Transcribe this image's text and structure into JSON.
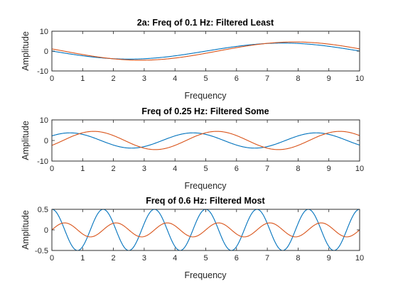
{
  "chart_data": [
    {
      "type": "line",
      "title": "2a: Freq of 0.1 Hz: Filtered Least",
      "xlabel": "Frequency",
      "ylabel": "Amplitude",
      "xlim": [
        0,
        10
      ],
      "ylim": [
        -10,
        10
      ],
      "xticks": [
        0,
        1,
        2,
        3,
        4,
        5,
        6,
        7,
        8,
        9,
        10
      ],
      "yticks": [
        -10,
        0,
        10
      ],
      "grid": false,
      "series": [
        {
          "color": "#0072BD",
          "frequency_hz": 0.1,
          "x": [
            0,
            1,
            2,
            3,
            4,
            5,
            6,
            7,
            7.6,
            8,
            9,
            10
          ],
          "y": [
            0,
            -2.3,
            -3.8,
            -3.9,
            -2.4,
            0,
            2.4,
            3.8,
            4.0,
            3.9,
            2.4,
            0
          ]
        },
        {
          "color": "#D95319",
          "frequency_hz": 0.1,
          "x": [
            0,
            1,
            2,
            2.8,
            3,
            4,
            5,
            6,
            7,
            7.8,
            8,
            9,
            10
          ],
          "y": [
            1.4,
            -0.9,
            -3.7,
            -4.7,
            -4.6,
            -3.3,
            -0.5,
            2.2,
            4.2,
            4.7,
            4.7,
            3.3,
            1.4
          ]
        }
      ]
    },
    {
      "type": "line",
      "title": "Freq of 0.25 Hz: Filtered Some",
      "xlabel": "Frequency",
      "ylabel": "Amplitude",
      "xlim": [
        0,
        10
      ],
      "ylim": [
        -10,
        10
      ],
      "xticks": [
        0,
        1,
        2,
        3,
        4,
        5,
        6,
        7,
        8,
        9,
        10
      ],
      "yticks": [
        -10,
        0,
        10
      ],
      "grid": false,
      "series": [
        {
          "color": "#0072BD",
          "frequency_hz": 0.25,
          "x": [
            0,
            0.4,
            1,
            1.5,
            2,
            2.4,
            3,
            3.5,
            4,
            4.4,
            5,
            5.5,
            6,
            6.4,
            7,
            7.5,
            8,
            8.4,
            9,
            9.5,
            10
          ],
          "y": [
            2.8,
            3.6,
            2.8,
            0.7,
            -2.2,
            -3.6,
            -2.8,
            -0.7,
            2.2,
            3.6,
            2.8,
            0.7,
            -2.2,
            -3.6,
            -2.8,
            -0.7,
            2.2,
            3.6,
            2.8,
            0.7,
            -2.2
          ]
        },
        {
          "color": "#D95319",
          "frequency_hz": 0.25,
          "x": [
            0,
            0.5,
            1,
            1.2,
            2,
            2.5,
            3,
            3.2,
            4,
            4.5,
            5,
            5.2,
            6,
            6.5,
            7,
            7.2,
            8,
            8.5,
            9,
            9.2,
            10
          ],
          "y": [
            0,
            2.4,
            4.1,
            4.4,
            2.4,
            0.1,
            -3.9,
            -4.4,
            -2.5,
            0.1,
            4.0,
            4.4,
            2.5,
            0.1,
            -3.9,
            -4.4,
            -2.5,
            0.1,
            4.0,
            4.4,
            2.5
          ]
        }
      ]
    },
    {
      "type": "line",
      "title": "Freq of 0.6 Hz: Filtered Most",
      "xlabel": "Frequency",
      "ylabel": "Amplitude",
      "xlim": [
        0,
        10
      ],
      "ylim": [
        -0.5,
        0.5
      ],
      "xticks": [
        0,
        1,
        2,
        3,
        4,
        5,
        6,
        7,
        8,
        9,
        10
      ],
      "yticks": [
        -0.5,
        0,
        0.5
      ],
      "grid": false,
      "series": [
        {
          "color": "#0072BD",
          "frequency_hz": 0.6,
          "x": [
            0,
            0.83,
            1.67,
            2.5,
            3.33,
            4.17,
            5,
            5.83,
            6.67,
            7.5,
            8.33,
            9.17,
            10
          ],
          "y": [
            0.5,
            -0.5,
            0.5,
            -0.5,
            0.5,
            -0.5,
            0.5,
            -0.5,
            0.5,
            -0.5,
            0.5,
            -0.5,
            0.5
          ]
        },
        {
          "color": "#D95319",
          "frequency_hz": 0.6,
          "x": [
            0,
            0.4,
            1.25,
            2.1,
            2.9,
            3.75,
            4.6,
            5.4,
            6.25,
            7.1,
            7.9,
            8.75,
            9.6,
            10
          ],
          "y": [
            0.0,
            0.17,
            -0.17,
            0.17,
            -0.17,
            0.17,
            -0.17,
            0.17,
            -0.17,
            0.17,
            -0.17,
            0.17,
            -0.17,
            0.0
          ]
        }
      ]
    }
  ]
}
